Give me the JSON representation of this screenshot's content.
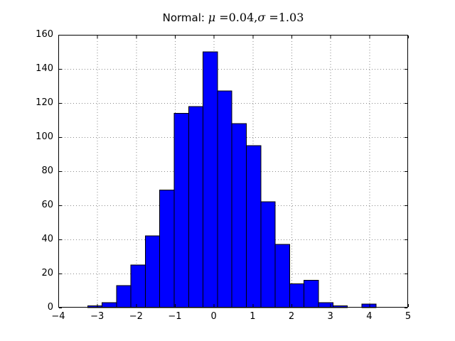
{
  "figure": {
    "background": "#ffffff"
  },
  "chart_data": {
    "type": "bar",
    "subtype": "histogram",
    "title": "Normal: μ =0.04,σ =1.03",
    "title_parts": {
      "prefix": "Normal: ",
      "mu": "μ",
      "eq1": " =0.04,",
      "sigma": "σ",
      "eq2": " =1.03"
    },
    "mu": 0.04,
    "sigma": 1.03,
    "total_count": 1000,
    "bin_edges": [
      -3.245,
      -2.874,
      -2.503,
      -2.131,
      -1.76,
      -1.389,
      -1.018,
      -0.647,
      -0.275,
      0.096,
      0.467,
      0.838,
      1.21,
      1.581,
      1.952,
      2.323,
      2.694,
      3.066,
      3.437,
      3.808,
      4.179
    ],
    "counts": [
      1,
      3,
      13,
      25,
      42,
      69,
      114,
      118,
      150,
      127,
      108,
      95,
      62,
      37,
      14,
      16,
      3,
      1,
      0,
      2
    ],
    "xlabel": "",
    "ylabel": "",
    "xlim": [
      -4,
      5
    ],
    "ylim": [
      0,
      160
    ],
    "xticks": [
      -4,
      -3,
      -2,
      -1,
      0,
      1,
      2,
      3,
      4,
      5
    ],
    "xtick_labels": [
      "−4",
      "−3",
      "−2",
      "−1",
      "0",
      "1",
      "2",
      "3",
      "4",
      "5"
    ],
    "yticks": [
      0,
      20,
      40,
      60,
      80,
      100,
      120,
      140,
      160
    ],
    "ytick_labels": [
      "0",
      "20",
      "40",
      "60",
      "80",
      "100",
      "120",
      "140",
      "160"
    ],
    "grid": {
      "visible": true,
      "style": "dotted",
      "color": "#8a8a8a"
    },
    "bar_color": "#0000ff",
    "bar_edge_color": "#000000",
    "axes_color": "#000000",
    "plot_background": "#ffffff",
    "legend": "none"
  }
}
